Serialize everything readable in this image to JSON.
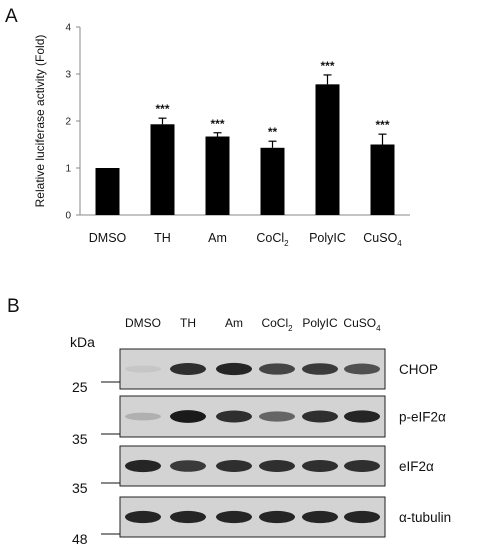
{
  "panel_a": {
    "letter": "A"
  },
  "panel_b": {
    "letter": "B"
  },
  "chart_data": {
    "type": "bar",
    "ylabel": "Relative luciferase activity (Fold)",
    "xlabel": "",
    "ylim": [
      0,
      4
    ],
    "yticks": [
      "0",
      "1",
      "2",
      "3",
      "4"
    ],
    "categories": [
      {
        "text": "DMSO",
        "sub": ""
      },
      {
        "text": "TH",
        "sub": ""
      },
      {
        "text": "Am",
        "sub": ""
      },
      {
        "text": "CoCl",
        "sub": "2"
      },
      {
        "text": "PolyIC",
        "sub": ""
      },
      {
        "text": "CuSO",
        "sub": "4"
      }
    ],
    "values": [
      1.0,
      1.93,
      1.67,
      1.43,
      2.78,
      1.5
    ],
    "errors": [
      0.0,
      0.13,
      0.08,
      0.14,
      0.2,
      0.22
    ],
    "significance": [
      "",
      "***",
      "***",
      "**",
      "***",
      "***"
    ],
    "bar_color": "#000000",
    "grid": false,
    "legend": "none"
  },
  "blot": {
    "lanes": [
      {
        "text": "DMSO",
        "sub": ""
      },
      {
        "text": "TH",
        "sub": ""
      },
      {
        "text": "Am",
        "sub": ""
      },
      {
        "text": "CoCl",
        "sub": "2"
      },
      {
        "text": "PolyIC",
        "sub": ""
      },
      {
        "text": "CuSO",
        "sub": "4"
      }
    ],
    "kda_label": "kDa",
    "markers": [
      "25",
      "35",
      "35",
      "48"
    ],
    "proteins": [
      "CHOP",
      "p-eIF2α",
      "eIF2α",
      "α-tubulin"
    ],
    "band_intensity": [
      [
        0.15,
        0.85,
        0.9,
        0.75,
        0.8,
        0.7
      ],
      [
        0.25,
        0.95,
        0.85,
        0.6,
        0.85,
        0.9
      ],
      [
        0.9,
        0.8,
        0.85,
        0.85,
        0.85,
        0.85
      ],
      [
        0.9,
        0.9,
        0.9,
        0.9,
        0.9,
        0.9
      ]
    ]
  }
}
